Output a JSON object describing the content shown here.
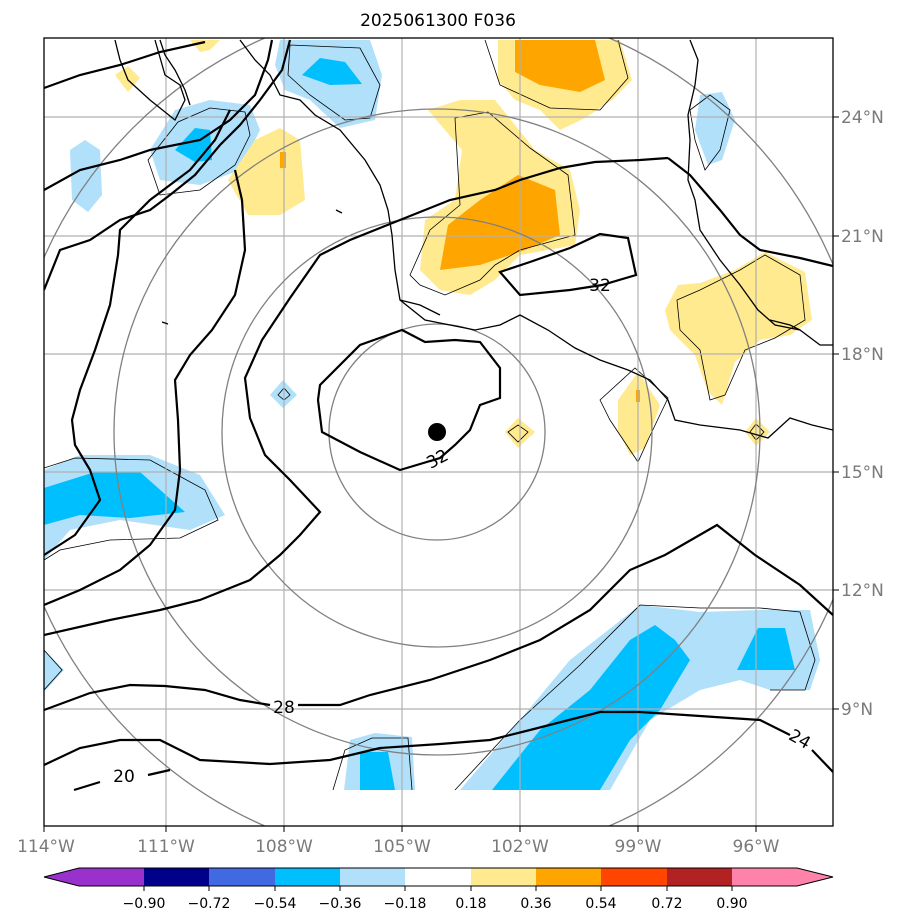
{
  "title": "2025061300 F036",
  "map": {
    "lat_labels": [
      "24°N",
      "21°N",
      "18°N",
      "15°N",
      "12°N",
      "9°N"
    ],
    "lon_labels": [
      "114°W",
      "111°W",
      "108°W",
      "105°W",
      "102°W",
      "99°W",
      "96°W"
    ],
    "contour_labels": [
      "32",
      "32",
      "28",
      "24",
      "20"
    ],
    "storm_center": {
      "lon": -104.1,
      "lat": 16.0
    }
  },
  "colorbar": {
    "tick_labels": [
      "−0.90",
      "−0.72",
      "−0.54",
      "−0.36",
      "−0.18",
      "0.18",
      "0.36",
      "0.54",
      "0.72",
      "0.90"
    ],
    "colors": [
      "#9932cc",
      "#00008b",
      "#4169e1",
      "#00bfff",
      "#b0e0fa",
      "#ffffff",
      "#ffea8f",
      "#ffa500",
      "#ff4500",
      "#b22222",
      "#ff82ab"
    ]
  },
  "colors": {
    "light_blue": "#b0e0fa",
    "blue": "#00bfff",
    "light_yellow": "#ffea8f",
    "orange": "#ffa500",
    "grid": "#b0b0b0",
    "range_rings": "#808080"
  }
}
